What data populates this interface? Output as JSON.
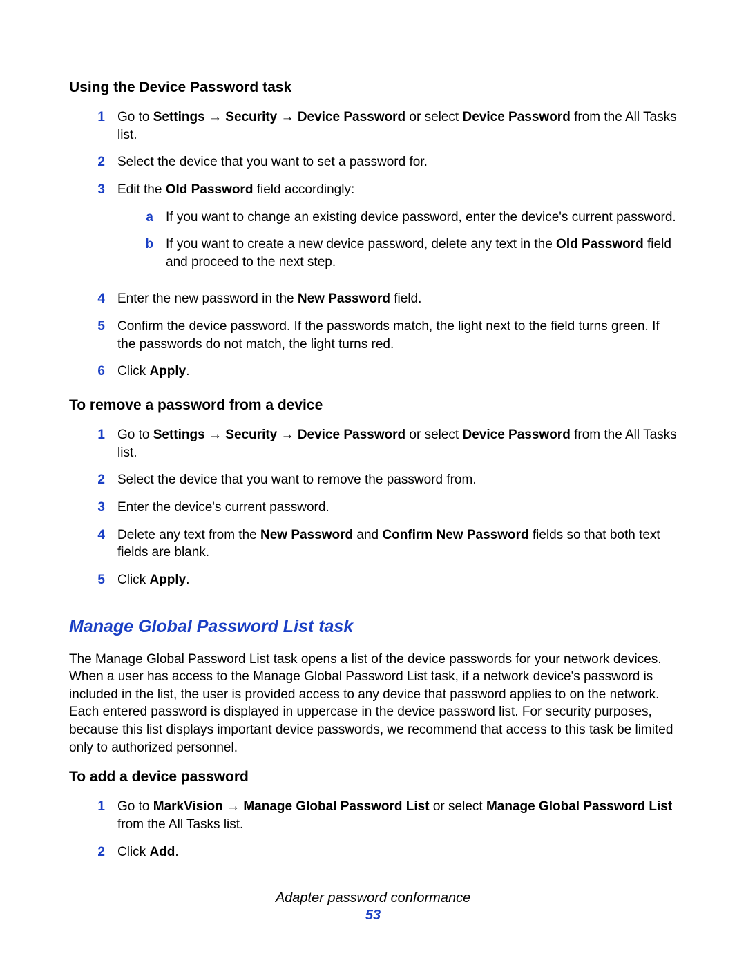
{
  "colors": {
    "accent": "#1a3fc4",
    "text": "#000000",
    "background": "#ffffff"
  },
  "arrow": "→",
  "section1": {
    "title": "Using the Device Password task",
    "steps": [
      {
        "n": "1",
        "html": "Go to <b>Settings</b> <span class='arrow'>→</span> <b>Security</b> <span class='arrow'>→</span> <b>Device Password</b> or select <b>Device Password</b> from the All Tasks list."
      },
      {
        "n": "2",
        "html": "Select the device that you want to set a password for."
      },
      {
        "n": "3",
        "html": "Edit the <b>Old Password</b> field accordingly:",
        "sub": [
          {
            "n": "a",
            "html": "If you want to change an existing device password, enter the device's current password."
          },
          {
            "n": "b",
            "html": "If you want to create a new device password, delete any text in the <b>Old Password</b> field and proceed to the next step."
          }
        ]
      },
      {
        "n": "4",
        "html": "Enter the new password in the <b>New Password</b> field."
      },
      {
        "n": "5",
        "html": "Confirm the device password. If the passwords match, the light next to the field turns green. If the passwords do not match, the light turns red."
      },
      {
        "n": "6",
        "html": "Click <b>Apply</b>."
      }
    ]
  },
  "section2": {
    "title": "To remove a password from a device",
    "steps": [
      {
        "n": "1",
        "html": "Go to <b>Settings</b> <span class='arrow'>→</span> <b>Security</b> <span class='arrow'>→</span> <b>Device Password</b> or select <b>Device Password</b> from the All Tasks list."
      },
      {
        "n": "2",
        "html": "Select the device that you want to remove the password from."
      },
      {
        "n": "3",
        "html": "Enter the device's current password."
      },
      {
        "n": "4",
        "html": "Delete any text from the <b>New Password</b> and <b>Confirm New Password</b> fields so that both text fields are blank."
      },
      {
        "n": "5",
        "html": "Click <b>Apply</b>."
      }
    ]
  },
  "section3": {
    "title": "Manage Global Password List task",
    "intro": "The Manage Global Password List task opens a list of the device passwords for your network devices. When a user has access to the Manage Global Password List task, if a network device's password is included in the list, the user is provided access to any device that password applies to on the network. Each entered password is displayed in uppercase in the device password list. For security purposes, because this list displays important device passwords, we recommend that access to this task be limited only to authorized personnel."
  },
  "section4": {
    "title": "To add a device password",
    "steps": [
      {
        "n": "1",
        "html": "Go to <b>MarkVision</b> <span class='arrow'>→</span> <b>Manage Global Password List</b> or select <b>Manage Global Password List</b> from the All Tasks list."
      },
      {
        "n": "2",
        "html": "Click <b>Add</b>."
      }
    ]
  },
  "footer": {
    "title": "Adapter password conformance",
    "page": "53"
  }
}
